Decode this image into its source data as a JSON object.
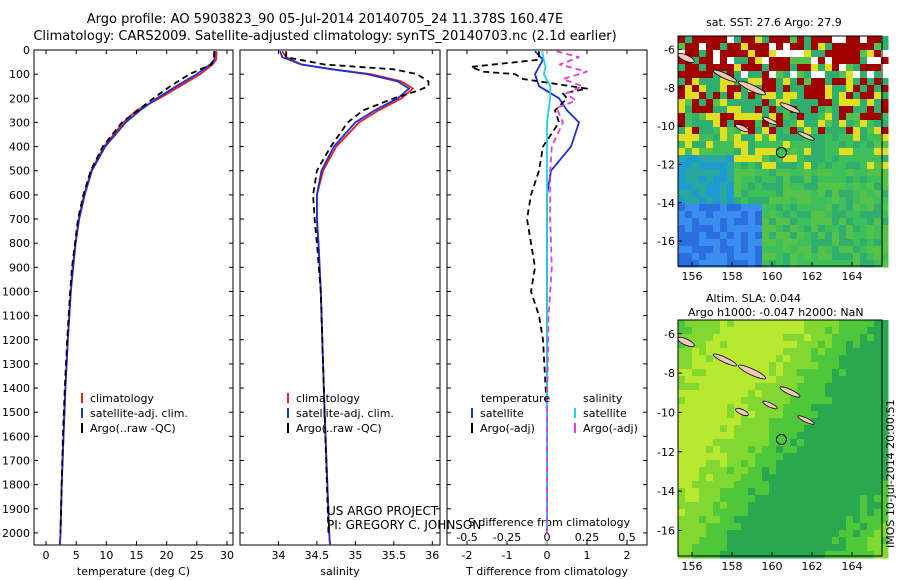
{
  "header": {
    "title_line1": "Argo profile: AO 5903823_90 05-Jul-2014 20140705_24 11.378S 160.47E",
    "title_line2": "Climatology: CARS2009. Satellite-adjusted climatology: synTS_20140703.nc (2.1d earlier)"
  },
  "footer": {
    "project_line1": "US ARGO PROJECT",
    "project_line2": "PI: GREGORY C. JOHNSON",
    "timestamp": "IMOS 10-Jul-2014 20:00:51"
  },
  "maps": {
    "sst_title": "sat. SST: 27.6 Argo: 27.9",
    "sla_title_line1": "Altim. SLA: 0.044",
    "sla_title_line2": "Argo h1000: -0.047 h2000: NaN",
    "lon_ticks": [
      "156",
      "158",
      "160",
      "162",
      "164"
    ],
    "lat_ticks": [
      "-6",
      "-8",
      "-10",
      "-12",
      "-14",
      "-16"
    ]
  },
  "colors": {
    "climatology": "#e8201a",
    "satellite": "#1e2fd6",
    "argo": "#000000",
    "satellite_diff_s": "#22d3e6",
    "argo_diff_s": "#e040d0"
  },
  "chart_data": [
    {
      "type": "line",
      "xlabel": "temperature (deg C)",
      "ylabel": "",
      "xlim": [
        -2,
        31
      ],
      "ylim": [
        2050,
        0
      ],
      "x_ticks": [
        "0",
        "5",
        "10",
        "15",
        "20",
        "25",
        "30"
      ],
      "y_ticks": [
        "0",
        "100",
        "200",
        "300",
        "400",
        "500",
        "600",
        "700",
        "800",
        "900",
        "1000",
        "1100",
        "1200",
        "1300",
        "1400",
        "1500",
        "1600",
        "1700",
        "1800",
        "1900",
        "2000"
      ],
      "legend": [
        "climatology",
        "satellite-adj. clim.",
        "Argo(..raw -QC)"
      ],
      "series": [
        {
          "name": "climatology",
          "depth": [
            5,
            40,
            60,
            100,
            150,
            200,
            250,
            300,
            400,
            500,
            600,
            700,
            800,
            900,
            1000,
            1200,
            1400,
            1600,
            1800,
            2000,
            2050
          ],
          "values": [
            28.3,
            28.2,
            27.6,
            25.6,
            22.2,
            18.8,
            15.0,
            12.8,
            9.6,
            7.5,
            6.3,
            5.4,
            4.9,
            4.4,
            4.1,
            3.6,
            3.2,
            2.9,
            2.6,
            2.4,
            2.3
          ]
        },
        {
          "name": "satellite-adj. clim.",
          "depth": [
            5,
            40,
            60,
            100,
            150,
            200,
            250,
            300,
            400,
            500,
            600,
            700,
            800,
            900,
            1000,
            1200,
            1400,
            1600,
            1800,
            2000,
            2050
          ],
          "values": [
            28.0,
            27.9,
            27.2,
            25.0,
            21.6,
            18.4,
            15.6,
            13.2,
            9.8,
            7.6,
            6.4,
            5.5,
            4.9,
            4.5,
            4.1,
            3.6,
            3.2,
            2.9,
            2.6,
            2.4,
            2.3
          ]
        },
        {
          "name": "Argo(..raw -QC)",
          "depth": [
            5,
            40,
            60,
            100,
            150,
            200,
            250,
            300,
            400,
            500,
            600,
            700,
            800,
            900,
            1000,
            1200,
            1400,
            1600,
            1800,
            2000
          ],
          "values": [
            27.9,
            27.8,
            27.4,
            23.8,
            20.6,
            17.8,
            15.2,
            12.6,
            9.4,
            7.4,
            6.2,
            5.3,
            4.8,
            4.3,
            4.0,
            3.5,
            3.1,
            2.8,
            2.6,
            2.4
          ]
        }
      ]
    },
    {
      "type": "line",
      "xlabel": "salinity",
      "xlim": [
        33.5,
        36.1
      ],
      "ylim": [
        2050,
        0
      ],
      "x_ticks": [
        "34",
        "34.5",
        "35",
        "35.5",
        "36"
      ],
      "legend": [
        "climatology",
        "satellite-adj. clim.",
        "Argo(..raw -QC)"
      ],
      "series": [
        {
          "name": "climatology",
          "depth": [
            5,
            30,
            60,
            80,
            100,
            130,
            160,
            200,
            250,
            300,
            400,
            500,
            600,
            700,
            800,
            1000,
            1200,
            1500,
            2000,
            2050
          ],
          "values": [
            34.05,
            34.1,
            34.3,
            34.7,
            35.2,
            35.6,
            35.75,
            35.6,
            35.3,
            35.05,
            34.75,
            34.58,
            34.5,
            34.5,
            34.52,
            34.55,
            34.57,
            34.6,
            34.66,
            34.67
          ]
        },
        {
          "name": "satellite-adj. clim.",
          "depth": [
            5,
            30,
            60,
            80,
            100,
            130,
            160,
            200,
            250,
            300,
            400,
            500,
            600,
            700,
            800,
            1000,
            1200,
            1500,
            2000,
            2050
          ],
          "values": [
            34.02,
            34.05,
            34.3,
            34.7,
            35.15,
            35.55,
            35.7,
            35.55,
            35.25,
            35.0,
            34.72,
            34.56,
            34.5,
            34.5,
            34.52,
            34.55,
            34.57,
            34.6,
            34.66,
            34.67
          ]
        },
        {
          "name": "Argo(..raw -QC)",
          "depth": [
            5,
            30,
            60,
            80,
            100,
            130,
            150,
            170,
            200,
            250,
            300,
            400,
            500,
            600,
            700,
            800,
            1000,
            1200,
            1500,
            2000
          ],
          "values": [
            34.1,
            34.1,
            34.6,
            35.5,
            35.8,
            35.95,
            35.95,
            35.8,
            35.5,
            35.1,
            34.9,
            34.68,
            34.5,
            34.45,
            34.47,
            34.5,
            34.55,
            34.57,
            34.6,
            34.65
          ]
        }
      ]
    },
    {
      "type": "line",
      "xlabel": "T difference from climatology",
      "title": "S difference from climatology",
      "xlim": [
        -2.5,
        2.5
      ],
      "ylim": [
        2050,
        0
      ],
      "x_ticks_bottom": [
        "-2",
        "-1",
        "0",
        "1",
        "2"
      ],
      "x_ticks_top": [
        "-0.5",
        "-0.25",
        "0",
        "0.25",
        "0.5"
      ],
      "legend_groups": [
        "temperature",
        "salinity"
      ],
      "legend": [
        "satellite",
        "Argo(-adj)",
        "satellite",
        "Argo(-adj)"
      ],
      "series": [
        {
          "name": "satellite",
          "quantity": "temperature",
          "depth": [
            5,
            40,
            70,
            100,
            150,
            200,
            250,
            300,
            400,
            500,
            600,
            800,
            1000,
            1500,
            2000
          ],
          "values": [
            -0.3,
            -0.1,
            -0.2,
            -0.3,
            -0.2,
            0.3,
            0.5,
            0.8,
            0.6,
            0.1,
            0.0,
            0.0,
            0.0,
            0.0,
            0.0
          ]
        },
        {
          "name": "Argo(-adj)",
          "quantity": "temperature",
          "depth": [
            5,
            40,
            70,
            90,
            100,
            120,
            140,
            160,
            180,
            200,
            250,
            300,
            400,
            500,
            600,
            700,
            800,
            900,
            1000,
            1100,
            1200,
            1500,
            2000
          ],
          "values": [
            -0.2,
            -0.2,
            -1.9,
            -1.6,
            -0.8,
            -0.6,
            0.2,
            1.0,
            0.4,
            0.5,
            0.2,
            0.3,
            -0.1,
            -0.2,
            -0.4,
            -0.5,
            -0.4,
            -0.3,
            -0.4,
            -0.2,
            -0.1,
            0.0,
            0.0
          ]
        },
        {
          "name": "satellite",
          "quantity": "salinity",
          "depth": [
            5,
            40,
            70,
            100,
            150,
            200,
            300,
            400,
            500,
            700,
            1000,
            1500,
            2000
          ],
          "values": [
            -0.03,
            -0.02,
            -0.01,
            -0.02,
            0.02,
            0.02,
            0.0,
            0.0,
            0.0,
            0.0,
            0.0,
            0.0,
            0.0
          ]
        },
        {
          "name": "Argo(-adj)",
          "quantity": "salinity",
          "depth": [
            5,
            30,
            60,
            90,
            120,
            150,
            180,
            210,
            240,
            300,
            400,
            500,
            700,
            900,
            1100,
            1500,
            2000
          ],
          "values": [
            0.06,
            0.2,
            0.08,
            0.25,
            0.1,
            0.22,
            0.12,
            0.18,
            0.06,
            0.1,
            0.03,
            0.02,
            0.02,
            0.03,
            0.01,
            0.0,
            0.0
          ]
        }
      ]
    }
  ]
}
